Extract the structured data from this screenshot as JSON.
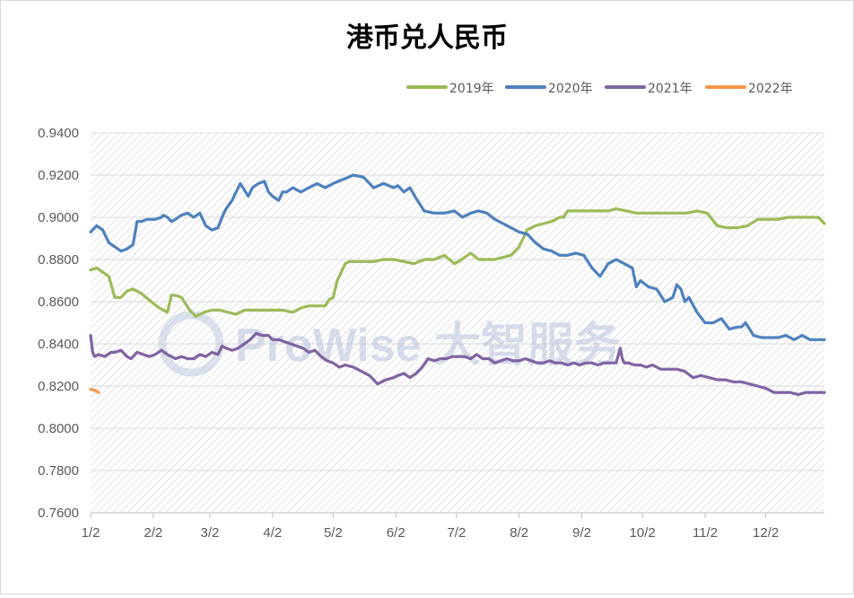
{
  "chart_data": {
    "type": "line",
    "title": "港币兑人民币",
    "xlabel": "",
    "ylabel": "",
    "ylim": [
      0.76,
      0.94
    ],
    "y_ticks": [
      "0.9400",
      "0.9200",
      "0.9000",
      "0.8800",
      "0.8600",
      "0.8400",
      "0.8200",
      "0.8000",
      "0.7800",
      "0.7600"
    ],
    "y_tick_values": [
      0.94,
      0.92,
      0.9,
      0.88,
      0.86,
      0.84,
      0.82,
      0.8,
      0.78,
      0.76
    ],
    "x_ticks": [
      "1/2",
      "2/2",
      "3/2",
      "4/2",
      "5/2",
      "6/2",
      "7/2",
      "8/2",
      "9/2",
      "10/2",
      "11/2",
      "12/2"
    ],
    "x_tick_days": [
      0,
      31,
      59,
      90,
      120,
      151,
      181,
      212,
      243,
      273,
      304,
      334
    ],
    "x_end_day": 363,
    "grid": true,
    "legend_position": "top-right",
    "watermark": "ProWise 大智服务",
    "series": [
      {
        "name": "2019年",
        "color": "#9bbb59",
        "x": [
          0,
          3,
          6,
          9,
          12,
          15,
          18,
          21,
          25,
          30,
          34,
          38,
          40,
          42,
          45,
          49,
          52,
          56,
          60,
          64,
          68,
          72,
          76,
          80,
          85,
          90,
          95,
          100,
          104,
          108,
          112,
          116,
          118,
          120,
          122,
          124,
          126,
          128,
          132,
          136,
          140,
          145,
          150,
          155,
          160,
          165,
          170,
          175,
          180,
          182,
          185,
          188,
          192,
          196,
          200,
          204,
          208,
          212,
          216,
          220,
          224,
          228,
          232,
          234,
          236,
          240,
          244,
          248,
          252,
          256,
          260,
          265,
          270,
          275,
          280,
          285,
          290,
          295,
          300,
          305,
          310,
          315,
          320,
          325,
          330,
          335,
          340,
          345,
          350,
          355,
          360,
          363
        ],
        "y": [
          0.875,
          0.876,
          0.874,
          0.872,
          0.862,
          0.862,
          0.865,
          0.866,
          0.864,
          0.86,
          0.857,
          0.855,
          0.863,
          0.863,
          0.862,
          0.856,
          0.853,
          0.855,
          0.856,
          0.856,
          0.855,
          0.854,
          0.856,
          0.856,
          0.856,
          0.856,
          0.856,
          0.855,
          0.857,
          0.858,
          0.858,
          0.858,
          0.861,
          0.862,
          0.87,
          0.874,
          0.878,
          0.879,
          0.879,
          0.879,
          0.879,
          0.88,
          0.88,
          0.879,
          0.878,
          0.88,
          0.88,
          0.882,
          0.878,
          0.879,
          0.881,
          0.883,
          0.88,
          0.88,
          0.88,
          0.881,
          0.882,
          0.886,
          0.894,
          0.896,
          0.897,
          0.898,
          0.9,
          0.9,
          0.903,
          0.903,
          0.903,
          0.903,
          0.903,
          0.903,
          0.904,
          0.903,
          0.902,
          0.902,
          0.902,
          0.902,
          0.902,
          0.902,
          0.903,
          0.902,
          0.896,
          0.895,
          0.895,
          0.896,
          0.899,
          0.899,
          0.899,
          0.9,
          0.9,
          0.9,
          0.9,
          0.897
        ]
      },
      {
        "name": "2020年",
        "color": "#4f81bd",
        "x": [
          0,
          3,
          6,
          9,
          12,
          15,
          18,
          21,
          23,
          25,
          28,
          32,
          35,
          36,
          38,
          40,
          42,
          45,
          48,
          51,
          54,
          57,
          60,
          63,
          65,
          67,
          70,
          74,
          78,
          80,
          83,
          86,
          88,
          90,
          93,
          95,
          97,
          100,
          104,
          108,
          112,
          116,
          120,
          125,
          130,
          135,
          140,
          145,
          150,
          152,
          155,
          158,
          161,
          165,
          170,
          175,
          180,
          184,
          188,
          192,
          196,
          200,
          204,
          208,
          212,
          216,
          220,
          224,
          228,
          232,
          236,
          240,
          244,
          248,
          252,
          256,
          260,
          264,
          268,
          270,
          272,
          276,
          280,
          284,
          288,
          290,
          292,
          294,
          296,
          300,
          304,
          308,
          312,
          316,
          320,
          322,
          324,
          328,
          332,
          336,
          340,
          344,
          348,
          352,
          356,
          360,
          363
        ],
        "y": [
          0.893,
          0.896,
          0.894,
          0.888,
          0.886,
          0.884,
          0.885,
          0.887,
          0.898,
          0.898,
          0.899,
          0.899,
          0.9,
          0.901,
          0.9,
          0.898,
          0.899,
          0.901,
          0.902,
          0.9,
          0.902,
          0.896,
          0.894,
          0.895,
          0.9,
          0.904,
          0.908,
          0.916,
          0.91,
          0.914,
          0.916,
          0.917,
          0.912,
          0.91,
          0.908,
          0.912,
          0.912,
          0.914,
          0.912,
          0.914,
          0.916,
          0.914,
          0.916,
          0.918,
          0.92,
          0.919,
          0.914,
          0.916,
          0.914,
          0.915,
          0.912,
          0.914,
          0.909,
          0.903,
          0.902,
          0.902,
          0.903,
          0.9,
          0.902,
          0.903,
          0.902,
          0.899,
          0.897,
          0.895,
          0.893,
          0.892,
          0.888,
          0.885,
          0.884,
          0.882,
          0.882,
          0.883,
          0.882,
          0.876,
          0.872,
          0.878,
          0.88,
          0.878,
          0.876,
          0.867,
          0.87,
          0.867,
          0.866,
          0.86,
          0.862,
          0.868,
          0.866,
          0.86,
          0.862,
          0.855,
          0.85,
          0.85,
          0.852,
          0.847,
          0.848,
          0.848,
          0.85,
          0.844,
          0.843,
          0.843,
          0.843,
          0.844,
          0.842,
          0.844,
          0.842,
          0.842,
          0.842
        ]
      },
      {
        "name": "2021年",
        "color": "#8064a2",
        "x": [
          0,
          1,
          2,
          4,
          7,
          10,
          12,
          15,
          18,
          20,
          23,
          26,
          29,
          32,
          35,
          38,
          40,
          42,
          45,
          48,
          51,
          54,
          57,
          60,
          63,
          65,
          67,
          70,
          73,
          76,
          79,
          82,
          85,
          88,
          90,
          93,
          96,
          99,
          102,
          105,
          108,
          111,
          114,
          117,
          120,
          123,
          126,
          130,
          134,
          138,
          142,
          146,
          150,
          152,
          155,
          158,
          161,
          164,
          167,
          170,
          173,
          176,
          179,
          182,
          185,
          188,
          191,
          194,
          197,
          200,
          203,
          206,
          209,
          212,
          215,
          218,
          221,
          224,
          227,
          230,
          233,
          236,
          239,
          242,
          245,
          248,
          251,
          254,
          257,
          260,
          262,
          263,
          264,
          266,
          269,
          272,
          275,
          278,
          282,
          286,
          290,
          294,
          298,
          302,
          306,
          310,
          314,
          318,
          322,
          326,
          330,
          334,
          338,
          342,
          346,
          350,
          354,
          358,
          363
        ],
        "y": [
          0.844,
          0.836,
          0.834,
          0.835,
          0.834,
          0.836,
          0.836,
          0.837,
          0.834,
          0.833,
          0.836,
          0.835,
          0.834,
          0.835,
          0.837,
          0.835,
          0.834,
          0.833,
          0.834,
          0.833,
          0.833,
          0.835,
          0.834,
          0.836,
          0.835,
          0.839,
          0.838,
          0.837,
          0.838,
          0.84,
          0.842,
          0.845,
          0.844,
          0.844,
          0.842,
          0.842,
          0.841,
          0.84,
          0.839,
          0.838,
          0.836,
          0.837,
          0.834,
          0.832,
          0.831,
          0.829,
          0.83,
          0.829,
          0.827,
          0.825,
          0.821,
          0.823,
          0.824,
          0.825,
          0.826,
          0.824,
          0.826,
          0.829,
          0.833,
          0.832,
          0.833,
          0.833,
          0.834,
          0.834,
          0.834,
          0.833,
          0.835,
          0.833,
          0.833,
          0.831,
          0.832,
          0.833,
          0.832,
          0.832,
          0.833,
          0.832,
          0.831,
          0.831,
          0.832,
          0.831,
          0.831,
          0.83,
          0.831,
          0.83,
          0.831,
          0.831,
          0.83,
          0.831,
          0.831,
          0.831,
          0.838,
          0.833,
          0.831,
          0.831,
          0.83,
          0.83,
          0.829,
          0.83,
          0.828,
          0.828,
          0.828,
          0.827,
          0.824,
          0.825,
          0.824,
          0.823,
          0.823,
          0.822,
          0.822,
          0.821,
          0.82,
          0.819,
          0.817,
          0.817,
          0.817,
          0.816,
          0.817,
          0.817,
          0.817
        ]
      },
      {
        "name": "2022年",
        "color": "#f79646",
        "x": [
          0,
          2,
          4
        ],
        "y": [
          0.8185,
          0.818,
          0.817
        ]
      }
    ]
  }
}
